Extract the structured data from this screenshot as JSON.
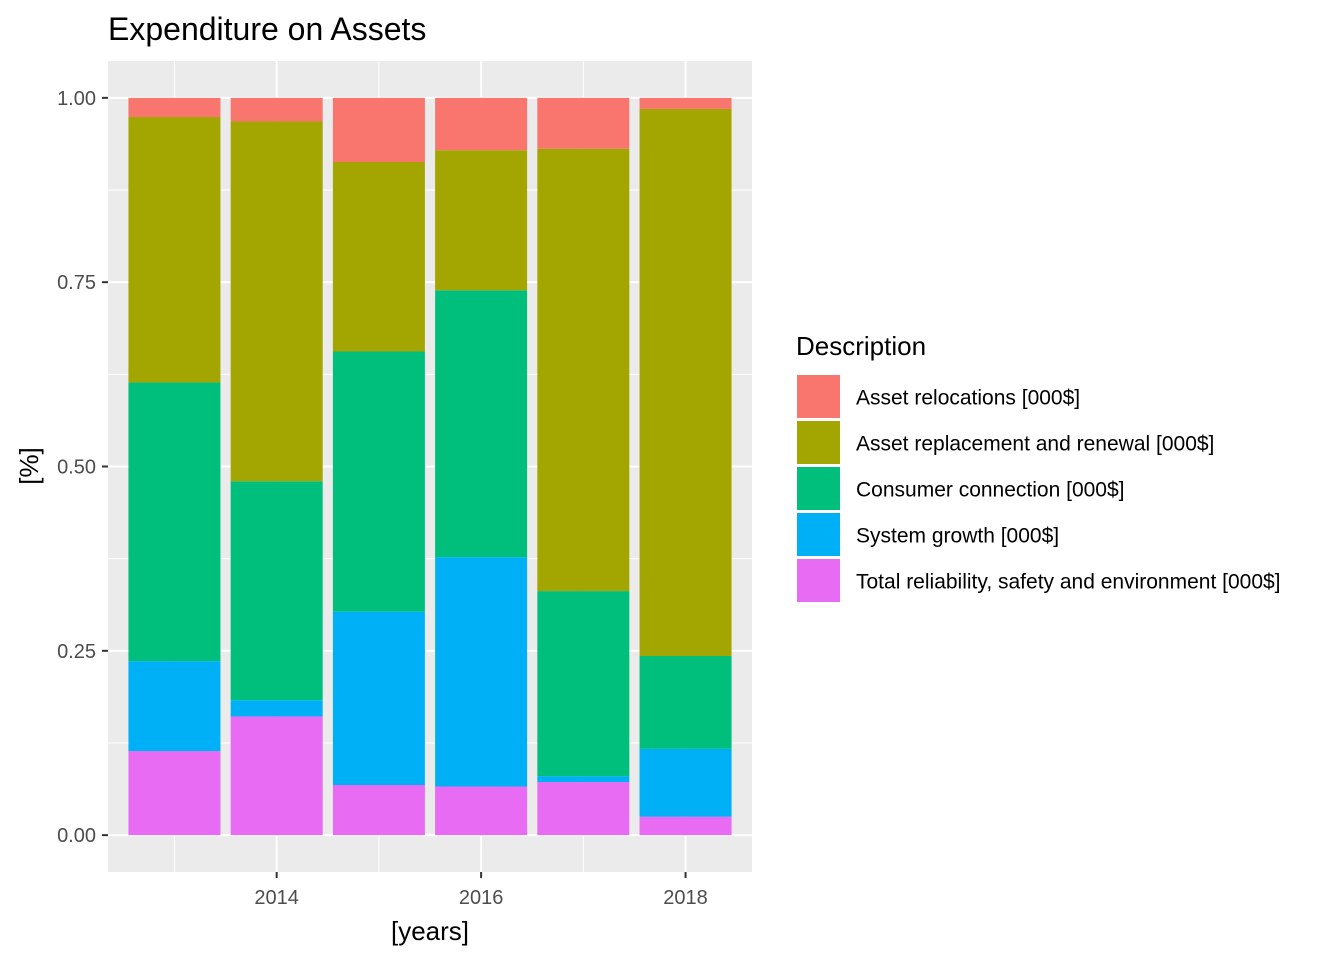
{
  "chart_data": {
    "type": "bar",
    "stacked": true,
    "title": "Expenditure on Assets",
    "xlabel": "[years]",
    "ylabel": "[%]",
    "x": [
      2013,
      2014,
      2015,
      2016,
      2017,
      2018
    ],
    "xlim": [
      2012.35,
      2018.65
    ],
    "x_ticks": [
      2014,
      2016,
      2018
    ],
    "x_tick_labels": [
      "2014",
      "2016",
      "2018"
    ],
    "ylim": [
      -0.05,
      1.05
    ],
    "y_ticks": [
      0,
      0.25,
      0.5,
      0.75,
      1.0
    ],
    "y_tick_labels": [
      "0.00",
      "0.25",
      "0.50",
      "0.75",
      "1.00"
    ],
    "grid": true,
    "legend_title": "Description",
    "legend_position": "right",
    "series": [
      {
        "name": "Total reliability, safety and environment [000$]",
        "color": "#E76BF3",
        "values": [
          0.114,
          0.161,
          0.068,
          0.066,
          0.072,
          0.025
        ]
      },
      {
        "name": "System growth [000$]",
        "color": "#00B0F6",
        "values": [
          0.122,
          0.022,
          0.235,
          0.311,
          0.008,
          0.092
        ]
      },
      {
        "name": "Consumer connection [000$]",
        "color": "#00BF7D",
        "values": [
          0.378,
          0.297,
          0.353,
          0.362,
          0.251,
          0.126
        ]
      },
      {
        "name": "Asset replacement and renewal [000$]",
        "color": "#A3A500",
        "values": [
          0.36,
          0.488,
          0.257,
          0.19,
          0.6,
          0.742
        ]
      },
      {
        "name": "Asset relocations [000$]",
        "color": "#F8766D",
        "values": [
          0.026,
          0.032,
          0.087,
          0.071,
          0.069,
          0.015
        ]
      }
    ],
    "legend_order": [
      4,
      3,
      2,
      1,
      0
    ]
  }
}
